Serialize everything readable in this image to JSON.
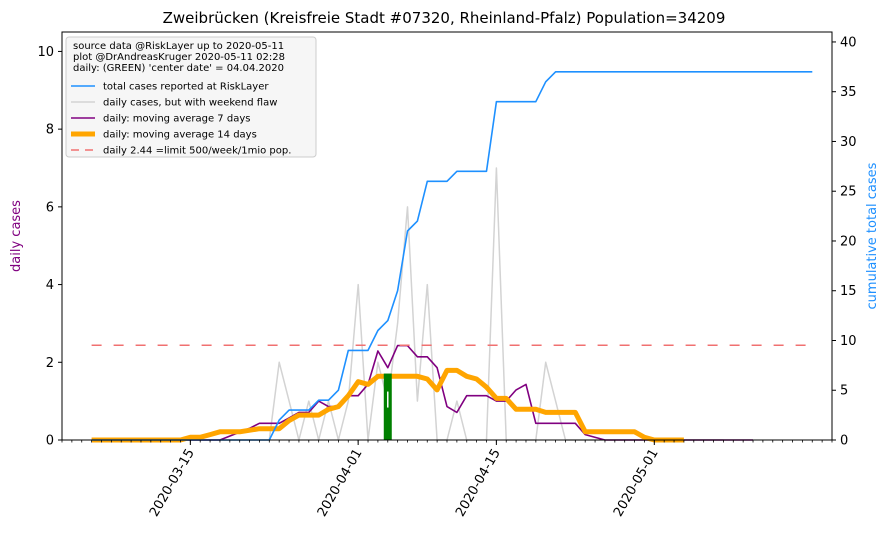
{
  "chart_data": {
    "type": "line",
    "title": "Zweibrücken (Kreisfreie Stadt #07320, Rheinland-Pfalz) Population=34209",
    "ylabel_left": "daily cases",
    "ylabel_right": "cumulative total cases",
    "ylim_left": [
      0,
      10.5
    ],
    "ylim_right": [
      0,
      41
    ],
    "yticks_left": [
      0,
      2,
      4,
      6,
      8,
      10
    ],
    "yticks_right": [
      0,
      5,
      10,
      15,
      20,
      25,
      30,
      35,
      40
    ],
    "xlim": [
      "2020-03-02",
      "2020-05-19"
    ],
    "xticks": [
      "2020-03-15",
      "2020-04-01",
      "2020-04-15",
      "2020-05-01"
    ],
    "legend": {
      "placement": "top-left",
      "header": [
        "source data @RiskLayer up to 2020-05-11",
        "plot @DrAndreasKruger 2020-05-11 02:28",
        "daily: (GREEN) 'center date' = 04.04.2020"
      ],
      "entries": [
        {
          "label": "total cases reported at RiskLayer",
          "color": "#1e90ff",
          "style": "solid"
        },
        {
          "label": "daily cases, but with weekend flaw",
          "color": "#d3d3d3",
          "style": "solid"
        },
        {
          "label": "daily: moving average 7 days",
          "color": "#800080",
          "style": "solid"
        },
        {
          "label": "daily: moving average 14 days",
          "color": "#ffa500",
          "style": "thick"
        },
        {
          "label": "daily 2.44 =limit 500/week/1mio pop.",
          "color": "#f07070",
          "style": "dashed"
        }
      ]
    },
    "series": [
      {
        "name": "total cases reported at RiskLayer",
        "axis": "right",
        "color": "#1e90ff",
        "points": [
          [
            "2020-03-05",
            0
          ],
          [
            "2020-03-23",
            0
          ],
          [
            "2020-03-24",
            2
          ],
          [
            "2020-03-25",
            3
          ],
          [
            "2020-03-27",
            3
          ],
          [
            "2020-03-28",
            4
          ],
          [
            "2020-03-29",
            4
          ],
          [
            "2020-03-30",
            5
          ],
          [
            "2020-03-31",
            9
          ],
          [
            "2020-04-02",
            9
          ],
          [
            "2020-04-03",
            11
          ],
          [
            "2020-04-04",
            12
          ],
          [
            "2020-04-05",
            15
          ],
          [
            "2020-04-06",
            21
          ],
          [
            "2020-04-07",
            22
          ],
          [
            "2020-04-08",
            26
          ],
          [
            "2020-04-10",
            26
          ],
          [
            "2020-04-11",
            27
          ],
          [
            "2020-04-14",
            27
          ],
          [
            "2020-04-15",
            34
          ],
          [
            "2020-04-19",
            34
          ],
          [
            "2020-04-20",
            36
          ],
          [
            "2020-04-21",
            37
          ],
          [
            "2020-05-17",
            37
          ]
        ]
      },
      {
        "name": "daily cases, but with weekend flaw",
        "axis": "left",
        "color": "#d3d3d3",
        "points": [
          [
            "2020-03-05",
            0
          ],
          [
            "2020-03-22",
            0
          ],
          [
            "2020-03-23",
            0
          ],
          [
            "2020-03-24",
            2
          ],
          [
            "2020-03-25",
            1
          ],
          [
            "2020-03-26",
            0
          ],
          [
            "2020-03-27",
            1
          ],
          [
            "2020-03-28",
            0
          ],
          [
            "2020-03-29",
            1
          ],
          [
            "2020-03-30",
            0
          ],
          [
            "2020-03-31",
            1
          ],
          [
            "2020-04-01",
            4
          ],
          [
            "2020-04-02",
            0
          ],
          [
            "2020-04-03",
            2
          ],
          [
            "2020-04-04",
            1
          ],
          [
            "2020-04-05",
            3
          ],
          [
            "2020-04-06",
            6
          ],
          [
            "2020-04-07",
            1
          ],
          [
            "2020-04-08",
            4
          ],
          [
            "2020-04-09",
            0
          ],
          [
            "2020-04-10",
            0
          ],
          [
            "2020-04-11",
            1
          ],
          [
            "2020-04-12",
            0
          ],
          [
            "2020-04-13",
            0
          ],
          [
            "2020-04-14",
            0
          ],
          [
            "2020-04-15",
            7
          ],
          [
            "2020-04-16",
            0
          ],
          [
            "2020-04-19",
            0
          ],
          [
            "2020-04-20",
            2
          ],
          [
            "2020-04-21",
            1
          ],
          [
            "2020-04-22",
            0
          ],
          [
            "2020-05-08",
            0
          ]
        ]
      },
      {
        "name": "daily: moving average 7 days",
        "axis": "left",
        "color": "#800080",
        "points": [
          [
            "2020-03-05",
            0
          ],
          [
            "2020-03-18",
            0
          ],
          [
            "2020-03-21",
            0.3
          ],
          [
            "2020-03-22",
            0.43
          ],
          [
            "2020-03-24",
            0.43
          ],
          [
            "2020-03-25",
            0.57
          ],
          [
            "2020-03-26",
            0.71
          ],
          [
            "2020-03-27",
            0.71
          ],
          [
            "2020-03-28",
            1.0
          ],
          [
            "2020-03-29",
            0.86
          ],
          [
            "2020-03-30",
            0.86
          ],
          [
            "2020-03-31",
            1.14
          ],
          [
            "2020-04-01",
            1.14
          ],
          [
            "2020-04-02",
            1.43
          ],
          [
            "2020-04-03",
            2.29
          ],
          [
            "2020-04-04",
            1.86
          ],
          [
            "2020-04-05",
            2.43
          ],
          [
            "2020-04-06",
            2.43
          ],
          [
            "2020-04-07",
            2.14
          ],
          [
            "2020-04-08",
            2.14
          ],
          [
            "2020-04-09",
            1.86
          ],
          [
            "2020-04-10",
            0.86
          ],
          [
            "2020-04-11",
            0.71
          ],
          [
            "2020-04-12",
            1.14
          ],
          [
            "2020-04-14",
            1.14
          ],
          [
            "2020-04-15",
            1.0
          ],
          [
            "2020-04-16",
            1.0
          ],
          [
            "2020-04-17",
            1.29
          ],
          [
            "2020-04-18",
            1.43
          ],
          [
            "2020-04-19",
            0.43
          ],
          [
            "2020-04-23",
            0.43
          ],
          [
            "2020-04-24",
            0.14
          ],
          [
            "2020-04-26",
            0
          ],
          [
            "2020-05-11",
            0
          ]
        ]
      },
      {
        "name": "daily: moving average 14 days",
        "axis": "left",
        "color": "#ffa500",
        "points": [
          [
            "2020-03-05",
            0
          ],
          [
            "2020-03-14",
            0
          ],
          [
            "2020-03-15",
            0.07
          ],
          [
            "2020-03-16",
            0.07
          ],
          [
            "2020-03-17",
            0.14
          ],
          [
            "2020-03-18",
            0.21
          ],
          [
            "2020-03-20",
            0.21
          ],
          [
            "2020-03-22",
            0.29
          ],
          [
            "2020-03-24",
            0.29
          ],
          [
            "2020-03-25",
            0.5
          ],
          [
            "2020-03-26",
            0.64
          ],
          [
            "2020-03-28",
            0.64
          ],
          [
            "2020-03-29",
            0.79
          ],
          [
            "2020-03-30",
            0.86
          ],
          [
            "2020-03-31",
            1.14
          ],
          [
            "2020-04-01",
            1.5
          ],
          [
            "2020-04-02",
            1.43
          ],
          [
            "2020-04-03",
            1.64
          ],
          [
            "2020-04-07",
            1.64
          ],
          [
            "2020-04-08",
            1.57
          ],
          [
            "2020-04-09",
            1.29
          ],
          [
            "2020-04-10",
            1.79
          ],
          [
            "2020-04-11",
            1.79
          ],
          [
            "2020-04-12",
            1.64
          ],
          [
            "2020-04-13",
            1.57
          ],
          [
            "2020-04-14",
            1.36
          ],
          [
            "2020-04-15",
            1.07
          ],
          [
            "2020-04-16",
            1.07
          ],
          [
            "2020-04-17",
            0.79
          ],
          [
            "2020-04-19",
            0.79
          ],
          [
            "2020-04-20",
            0.71
          ],
          [
            "2020-04-23",
            0.71
          ],
          [
            "2020-04-24",
            0.21
          ],
          [
            "2020-04-26",
            0.21
          ],
          [
            "2020-04-28",
            0.21
          ],
          [
            "2020-04-29",
            0.21
          ],
          [
            "2020-04-30",
            0.07
          ],
          [
            "2020-05-01",
            0
          ],
          [
            "2020-05-04",
            0
          ]
        ]
      },
      {
        "name": "daily 2.44 =limit 500/week/1mio pop.",
        "axis": "left",
        "color": "#f07070",
        "points": [
          [
            "2020-03-05",
            2.44
          ],
          [
            "2020-05-17",
            2.44
          ]
        ]
      }
    ],
    "center_date_bar": {
      "date": "2020-04-04",
      "value": 1.71,
      "color": "#008000"
    }
  }
}
